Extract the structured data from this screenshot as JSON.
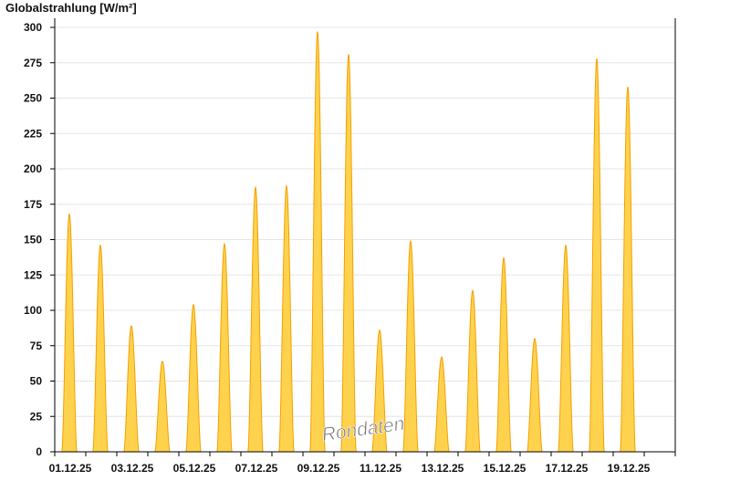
{
  "chart_data": {
    "type": "area",
    "title": "Globalstrahlung [W/m²]",
    "ylabel": "Globalstrahlung [W/m²]",
    "ylim": [
      0,
      300
    ],
    "yticks": [
      0,
      25,
      50,
      75,
      100,
      125,
      150,
      175,
      200,
      225,
      250,
      275,
      300
    ],
    "xticklabels": [
      "01.12.25",
      "03.12.25",
      "05.12.25",
      "07.12.25",
      "09.12.25",
      "11.12.25",
      "13.12.25",
      "15.12.25",
      "17.12.25",
      "19.12.25"
    ],
    "days": [
      "01.12.25",
      "02.12.25",
      "03.12.25",
      "04.12.25",
      "05.12.25",
      "06.12.25",
      "07.12.25",
      "08.12.25",
      "09.12.25",
      "10.12.25",
      "11.12.25",
      "12.12.25",
      "13.12.25",
      "14.12.25",
      "15.12.25",
      "16.12.25",
      "17.12.25",
      "18.12.25",
      "19.12.25",
      "20.12.25"
    ],
    "daily_peak": [
      168,
      146,
      89,
      64,
      104,
      147,
      187,
      188,
      297,
      281,
      86,
      149,
      67,
      114,
      137,
      80,
      146,
      278,
      258,
      0
    ],
    "grid": true,
    "fill_color": "#ffd24d",
    "line_color": "#f5a000"
  },
  "watermark": "Rondaten"
}
